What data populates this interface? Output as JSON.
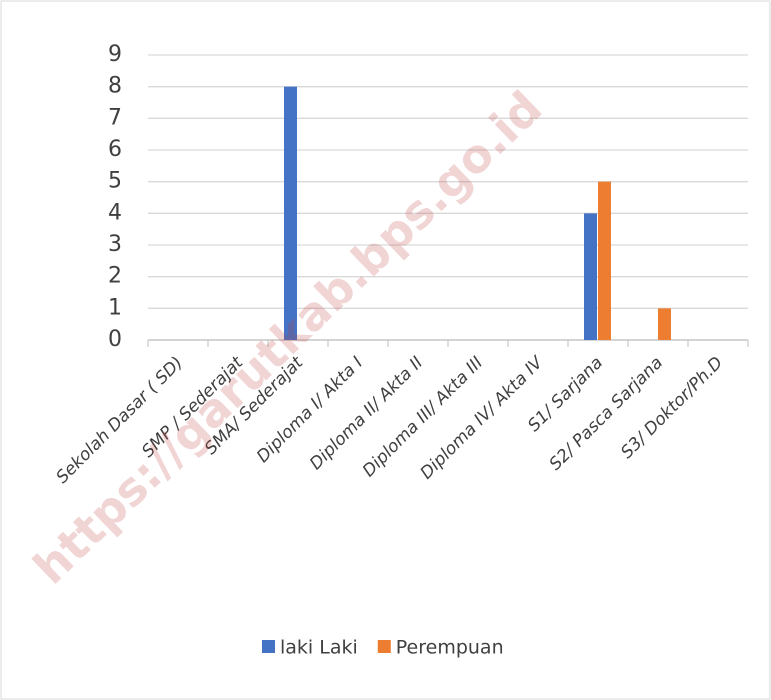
{
  "chart_data": {
    "type": "bar",
    "categories": [
      "Sekolah Dasar ( SD)",
      "SMP / Sederajat",
      "SMA/ Sederajat",
      "Diploma I/ Akta I",
      "Diploma II/ Akta II",
      "Diploma III/ Akta III",
      "Diploma IV/ Akta IV",
      "S1/ Sarjana",
      "S2/ Pasca Sarjana",
      "S3/ Doktor/Ph.D"
    ],
    "series": [
      {
        "name": "laki Laki",
        "color": "#4472c4",
        "values": [
          0,
          0,
          8,
          0,
          0,
          0,
          0,
          4,
          0,
          0
        ]
      },
      {
        "name": "Perempuan",
        "color": "#ed7d31",
        "values": [
          0,
          0,
          0,
          0,
          0,
          0,
          0,
          5,
          1,
          0
        ]
      }
    ],
    "ylim": [
      0,
      9
    ],
    "yticks": [
      0,
      1,
      2,
      3,
      4,
      5,
      6,
      7,
      8,
      9
    ],
    "grid": true,
    "legend": "bottom",
    "watermark": "https://garutkab.bps.go.id"
  }
}
